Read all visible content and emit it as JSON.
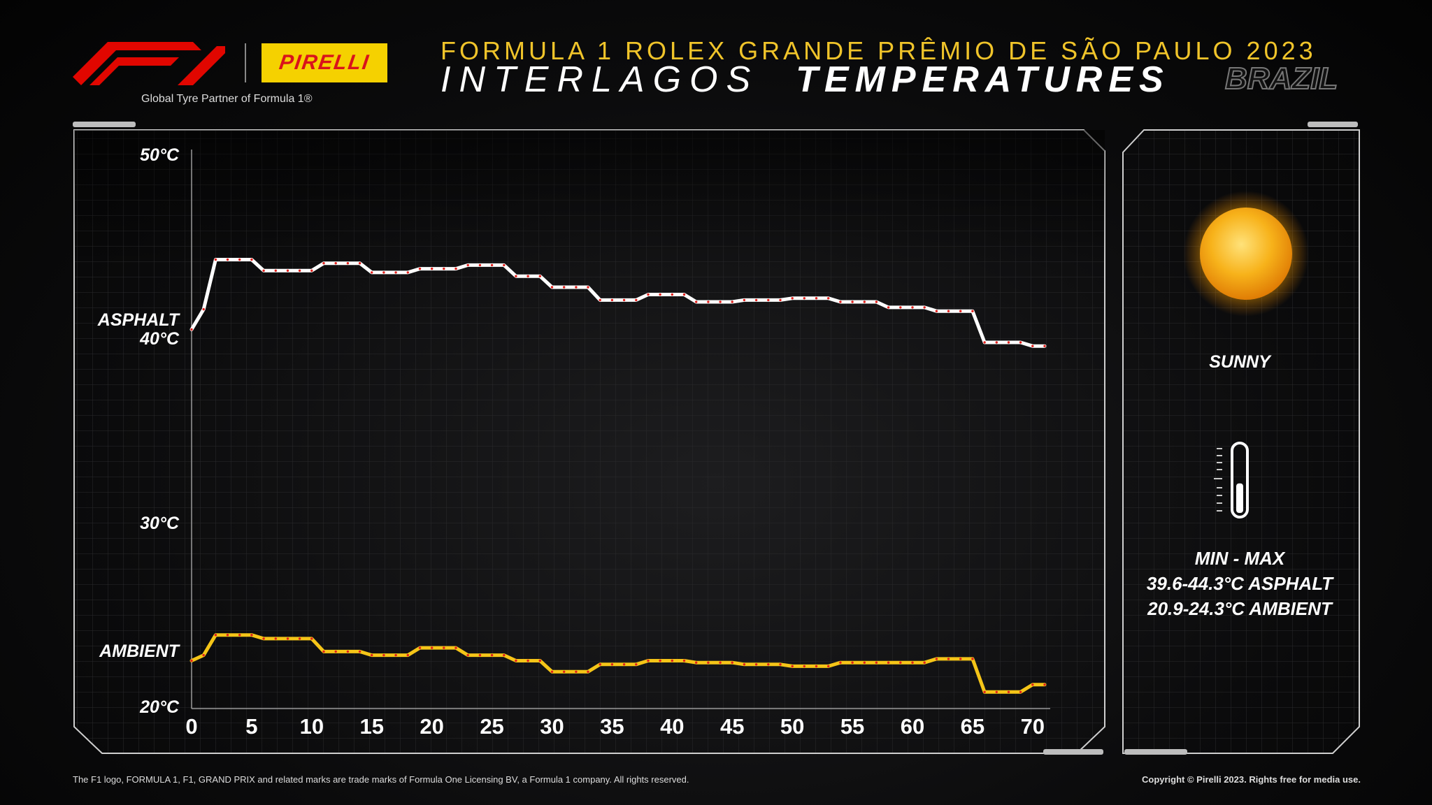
{
  "header": {
    "partner_text": "Global Tyre Partner of Formula 1®",
    "pirelli_label": "PIRELLI",
    "event_title": "FORMULA 1 ROLEX GRANDE PRÊMIO DE SÃO PAULO 2023",
    "track_name": "INTERLAGOS",
    "title_word": "TEMPERATURES",
    "country": "BRAZIL"
  },
  "chart_data": {
    "type": "line",
    "xlim": [
      0,
      71
    ],
    "ylim": [
      20,
      50
    ],
    "x_ticks": [
      0,
      5,
      10,
      15,
      20,
      25,
      30,
      35,
      40,
      45,
      50,
      55,
      60,
      65,
      70
    ],
    "y_ticks": [
      {
        "value": 50,
        "label": "50°C"
      },
      {
        "value": 40,
        "label": "40°C"
      },
      {
        "value": 30,
        "label": "30°C"
      },
      {
        "value": 20,
        "label": "20°C"
      }
    ],
    "grid": true,
    "series": [
      {
        "name": "ASPHALT",
        "color": "#ffffff",
        "marker_color": "#e0201c",
        "x": [
          0,
          1,
          2,
          3,
          4,
          5,
          6,
          7,
          8,
          9,
          10,
          11,
          12,
          13,
          14,
          15,
          16,
          17,
          18,
          19,
          20,
          21,
          22,
          23,
          24,
          25,
          26,
          27,
          28,
          29,
          30,
          31,
          32,
          33,
          34,
          35,
          36,
          37,
          38,
          39,
          40,
          41,
          42,
          43,
          44,
          45,
          46,
          47,
          48,
          49,
          50,
          51,
          52,
          53,
          54,
          55,
          56,
          57,
          58,
          59,
          60,
          61,
          62,
          63,
          64,
          65,
          66,
          67,
          68,
          69,
          70,
          71
        ],
        "values": [
          40.6,
          41.7,
          44.4,
          44.4,
          44.4,
          44.4,
          43.8,
          43.8,
          43.8,
          43.8,
          43.8,
          44.2,
          44.2,
          44.2,
          44.2,
          43.7,
          43.7,
          43.7,
          43.7,
          43.9,
          43.9,
          43.9,
          43.9,
          44.1,
          44.1,
          44.1,
          44.1,
          43.5,
          43.5,
          43.5,
          42.9,
          42.9,
          42.9,
          42.9,
          42.2,
          42.2,
          42.2,
          42.2,
          42.5,
          42.5,
          42.5,
          42.5,
          42.1,
          42.1,
          42.1,
          42.1,
          42.2,
          42.2,
          42.2,
          42.2,
          42.3,
          42.3,
          42.3,
          42.3,
          42.1,
          42.1,
          42.1,
          42.1,
          41.8,
          41.8,
          41.8,
          41.8,
          41.6,
          41.6,
          41.6,
          41.6,
          39.9,
          39.9,
          39.9,
          39.9,
          39.7,
          39.7
        ]
      },
      {
        "name": "AMBIENT",
        "color": "#f5c518",
        "marker_color": "#e0201c",
        "x": [
          0,
          1,
          2,
          3,
          4,
          5,
          6,
          7,
          8,
          9,
          10,
          11,
          12,
          13,
          14,
          15,
          16,
          17,
          18,
          19,
          20,
          21,
          22,
          23,
          24,
          25,
          26,
          27,
          28,
          29,
          30,
          31,
          32,
          33,
          34,
          35,
          36,
          37,
          38,
          39,
          40,
          41,
          42,
          43,
          44,
          45,
          46,
          47,
          48,
          49,
          50,
          51,
          52,
          53,
          54,
          55,
          56,
          57,
          58,
          59,
          60,
          61,
          62,
          63,
          64,
          65,
          66,
          67,
          68,
          69,
          70,
          71
        ],
        "values": [
          22.6,
          22.9,
          24.0,
          24.0,
          24.0,
          24.0,
          23.8,
          23.8,
          23.8,
          23.8,
          23.8,
          23.1,
          23.1,
          23.1,
          23.1,
          22.9,
          22.9,
          22.9,
          22.9,
          23.3,
          23.3,
          23.3,
          23.3,
          22.9,
          22.9,
          22.9,
          22.9,
          22.6,
          22.6,
          22.6,
          22.0,
          22.0,
          22.0,
          22.0,
          22.4,
          22.4,
          22.4,
          22.4,
          22.6,
          22.6,
          22.6,
          22.6,
          22.5,
          22.5,
          22.5,
          22.5,
          22.4,
          22.4,
          22.4,
          22.4,
          22.3,
          22.3,
          22.3,
          22.3,
          22.5,
          22.5,
          22.5,
          22.5,
          22.5,
          22.5,
          22.5,
          22.5,
          22.7,
          22.7,
          22.7,
          22.7,
          20.9,
          20.9,
          20.9,
          20.9,
          21.3,
          21.3
        ]
      }
    ]
  },
  "conditions": {
    "weather": "SUNNY",
    "minmax_label": "MIN  -  MAX",
    "asphalt_range": "39.6-44.3°C ASPHALT",
    "ambient_range": "20.9-24.3°C AMBIENT",
    "thermometer_level": 0.45
  },
  "footer": {
    "left": "The F1 logo, FORMULA 1, F1, GRAND PRIX and related marks are trade marks of Formula One Licensing BV, a Formula 1 company. All rights reserved.",
    "right": "Copyright © Pirelli 2023. Rights free for media use."
  },
  "colors": {
    "accent_yellow": "#f0c42a",
    "f1_red": "#e10600",
    "pirelli_yellow": "#f5d100"
  }
}
